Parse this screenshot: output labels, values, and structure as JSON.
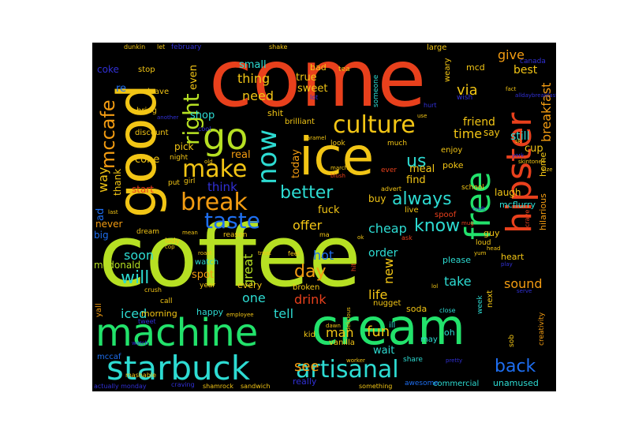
{
  "palette": {
    "red": "#e8401c",
    "orange": "#f39c12",
    "yellow": "#f2c515",
    "lime": "#b6e023",
    "green": "#22e26b",
    "aqua": "#2ddbd2",
    "blue": "#1e6ef0",
    "indigo": "#3130d6",
    "grey": "#555555"
  },
  "words": [
    "coffee",
    "come",
    "cream",
    "ice",
    "good",
    "machine",
    "starbuck",
    "hipster",
    "free",
    "now",
    "go",
    "culture",
    "artisanal",
    "break",
    "make",
    "taste",
    "right",
    "better",
    "mccafe",
    "back",
    "know",
    "always",
    "day",
    "will",
    "us",
    "breakfast",
    "see",
    "drink",
    "life",
    "fun",
    "one",
    "great",
    "new",
    "hot",
    "sound",
    "iced",
    "man",
    "take",
    "give",
    "via",
    "time",
    "friend",
    "cheap",
    "order",
    "need",
    "thing",
    "tell",
    "soon",
    "way",
    "offer",
    "meal",
    "cone",
    "fuck",
    "think",
    "mcdonald",
    "spot",
    "still",
    "best",
    "even",
    "today",
    "find",
    "cup",
    "real",
    "shop",
    "small",
    "sweet",
    "true",
    "stop",
    "coke",
    "re",
    "bring",
    "discount",
    "pick",
    "start",
    "thank",
    "ad",
    "never",
    "big",
    "morning",
    "happy",
    "yall",
    "mccaf",
    "every",
    "home",
    "laugh",
    "guy",
    "school",
    "mcflurry",
    "buy",
    "hilarious",
    "creativity",
    "sob",
    "say",
    "enjoy",
    "poke",
    "shit",
    "bad",
    "large",
    "mcd",
    "weary",
    "wish",
    "leave",
    "canada",
    "february",
    "wait",
    "vanilla",
    "really",
    "unamused",
    "commercial",
    "awesome",
    "ill",
    "may",
    "oh",
    "kid",
    "share",
    "soda",
    "nugget",
    "broken",
    "brilliant",
    "please",
    "heart",
    "next",
    "week",
    "close",
    "look",
    "much",
    "someone",
    "girl",
    "put",
    "night",
    "cool",
    "dream",
    "lady",
    "call",
    "year",
    "watch",
    "reason",
    "crush",
    "tweet",
    "watch_",
    "dunkin",
    "let",
    "shake",
    "actually monday",
    "craving",
    "shamrock",
    "sandwich",
    "something",
    "mashable",
    "ever",
    "spoof",
    "live",
    "advert",
    "ask",
    "ma",
    "mean",
    "lot",
    "hit",
    "feel",
    "treat",
    "roast",
    "cop",
    "loud",
    "yum",
    "craft",
    "mug",
    "serve",
    "crave",
    "worker",
    "dawn",
    "employee",
    "hurt",
    "fact",
    "alldaybreakfast",
    "sk",
    "head",
    "skintone4",
    "ok",
    "blush",
    "march",
    "old",
    "caramel",
    "tea",
    "use",
    "size",
    "another",
    "york",
    "play",
    "pretty",
    "delicious",
    "last",
    "lol"
  ]
}
